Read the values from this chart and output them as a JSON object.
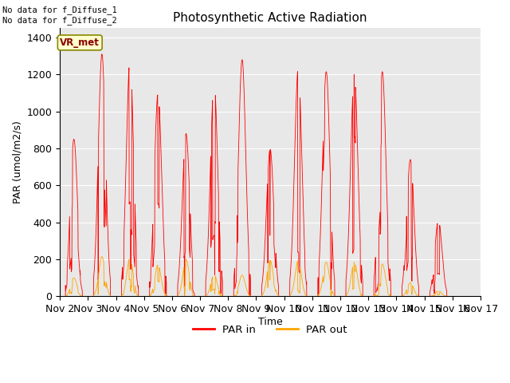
{
  "title": "Photosynthetic Active Radiation",
  "ylabel": "PAR (umol/m2/s)",
  "xlabel": "Time",
  "annotation_top": "No data for f_Diffuse_1\nNo data for f_Diffuse_2",
  "vr_met_label": "VR_met",
  "legend_labels": [
    "PAR in",
    "PAR out"
  ],
  "legend_colors": [
    "red",
    "orange"
  ],
  "ylim": [
    0,
    1450
  ],
  "background_color": "#e8e8e8",
  "x_tick_labels": [
    "Nov 2",
    "Nov 3",
    "Nov 4",
    "Nov 5",
    "Nov 6",
    "Nov 7",
    "Nov 8",
    "Nov 9",
    "Nov 10",
    "Nov 11",
    "Nov 12",
    "Nov 13",
    "Nov 14",
    "Nov 15",
    "Nov 16",
    "Nov 17"
  ],
  "num_days": 15,
  "day_peaks_par_in": [
    850,
    1310,
    1280,
    1095,
    880,
    1160,
    1280,
    795,
    1230,
    1215,
    1200,
    1215,
    740,
    410,
    0
  ],
  "day_peaks_par_out": [
    100,
    215,
    210,
    170,
    200,
    120,
    115,
    195,
    195,
    185,
    185,
    175,
    75,
    30,
    0
  ],
  "figsize": [
    6.4,
    4.8
  ],
  "dpi": 100
}
